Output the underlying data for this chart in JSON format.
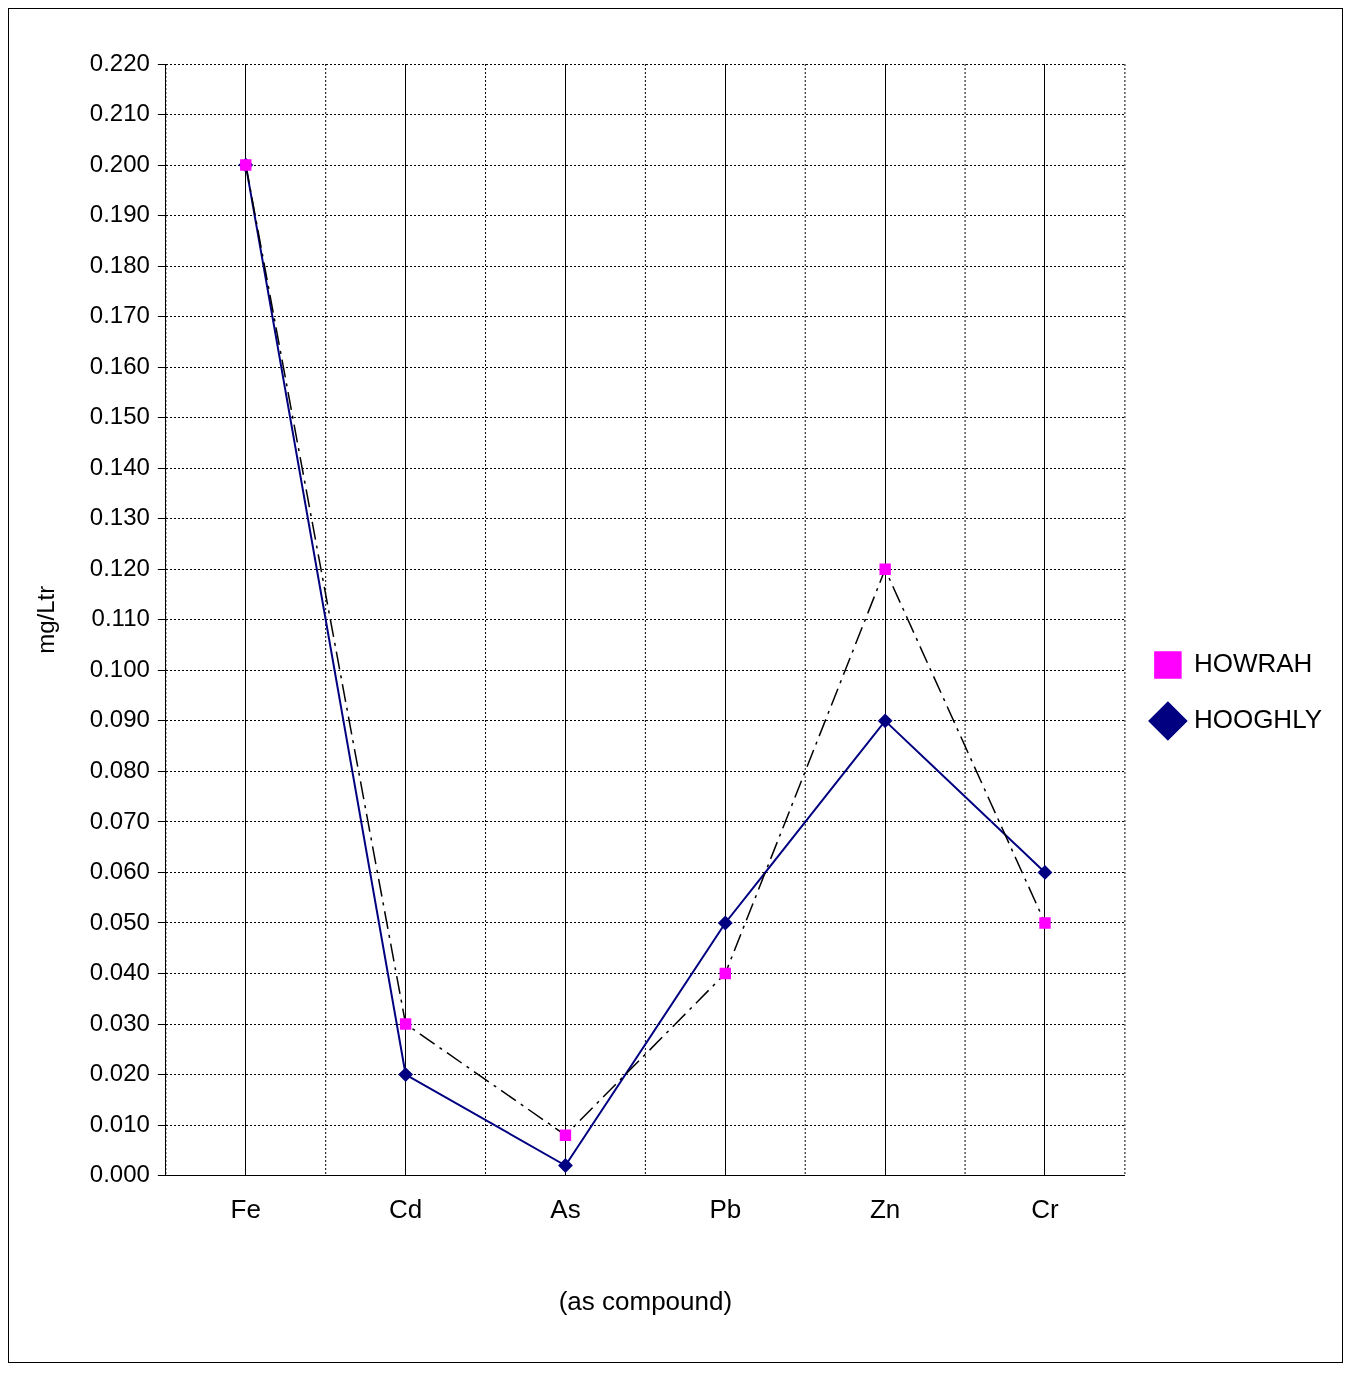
{
  "chart_data": {
    "type": "line",
    "ylabel": "mg/Ltr",
    "xlabel": "(as compound)",
    "categories": [
      "Fe",
      "Cd",
      "As",
      "Pb",
      "Zn",
      "Cr"
    ],
    "series": [
      {
        "name": "HOOGHLY",
        "color": "#000080",
        "values": [
          0.2,
          0.02,
          0.002,
          0.05,
          0.09,
          0.06
        ],
        "marker": "diamond",
        "line_style": "solid"
      },
      {
        "name": "HOWRAH",
        "color": "#ff00ff",
        "values": [
          0.2,
          0.03,
          0.008,
          0.04,
          0.12,
          0.05
        ],
        "marker": "square",
        "line_style": "dashed"
      }
    ],
    "ylim": [
      0,
      0.22
    ],
    "yticks": [
      {
        "value": 0,
        "label": "0.000"
      },
      {
        "value": 0.01,
        "label": "0.010"
      },
      {
        "value": 0.02,
        "label": "0.020"
      },
      {
        "value": 0.03,
        "label": "0.030"
      },
      {
        "value": 0.04,
        "label": "0.040"
      },
      {
        "value": 0.05,
        "label": "0.050"
      },
      {
        "value": 0.06,
        "label": "0.060"
      },
      {
        "value": 0.07,
        "label": "0.070"
      },
      {
        "value": 0.08,
        "label": "0.080"
      },
      {
        "value": 0.09,
        "label": "0.090"
      },
      {
        "value": 0.1,
        "label": "0.100"
      },
      {
        "value": 0.11,
        "label": "0.110"
      },
      {
        "value": 0.12,
        "label": "0.120"
      },
      {
        "value": 0.13,
        "label": "0.130"
      },
      {
        "value": 0.14,
        "label": "0.140"
      },
      {
        "value": 0.15,
        "label": "0.150"
      },
      {
        "value": 0.16,
        "label": "0.160"
      },
      {
        "value": 0.17,
        "label": "0.170"
      },
      {
        "value": 0.18,
        "label": "0.180"
      },
      {
        "value": 0.19,
        "label": "0.190"
      },
      {
        "value": 0.2,
        "label": "0.200"
      },
      {
        "value": 0.21,
        "label": "0.210"
      },
      {
        "value": 0.22,
        "label": "0.220"
      }
    ],
    "grid": true,
    "legend": "right"
  }
}
